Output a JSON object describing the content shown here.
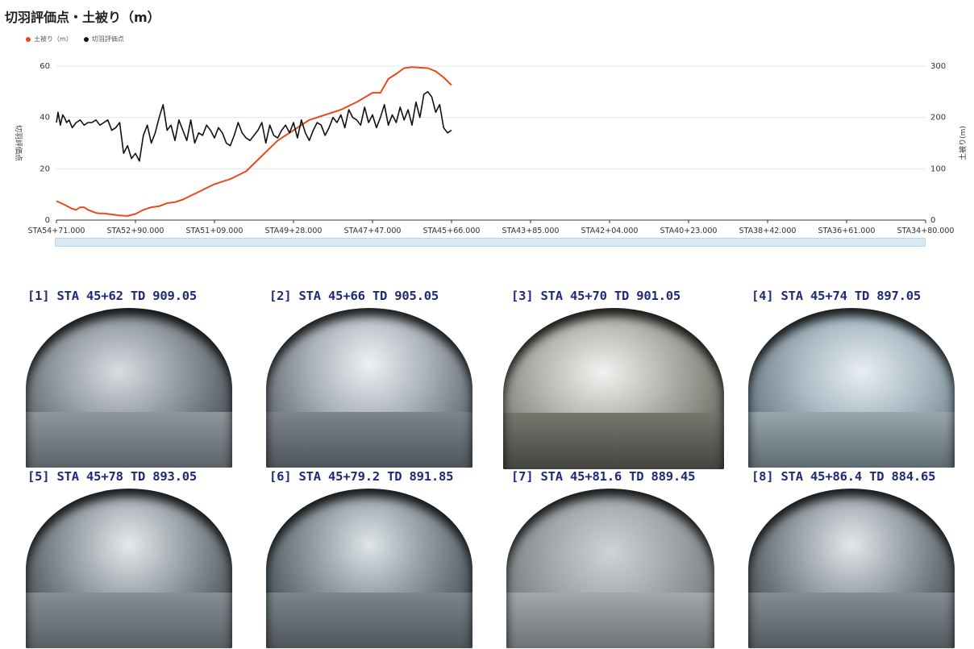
{
  "title": "切羽評価点・土被り（m）",
  "legend": [
    {
      "label": "土被り（m）",
      "color": "#e84a1a"
    },
    {
      "label": "切羽評価点",
      "color": "#111111"
    }
  ],
  "colors": {
    "cover": "#e84a1a",
    "score": "#111111",
    "axis": "#333333",
    "grid": "#e6e6e6",
    "label_text": "#1f2a7a"
  },
  "chart_data": {
    "type": "line",
    "title": "切羽評価点・土被り（m）",
    "categories": [
      "STA54+71.000",
      "STA52+90.000",
      "STA51+09.000",
      "STA49+28.000",
      "STA47+47.000",
      "STA45+66.000",
      "STA43+85.000",
      "STA42+04.000",
      "STA40+23.000",
      "STA38+42.000",
      "STA36+61.000",
      "STA34+80.000"
    ],
    "xlim": [
      0,
      11
    ],
    "y_left": {
      "label": "切羽評価点",
      "ylim": [
        0,
        60
      ],
      "ticks": [
        0,
        20,
        40,
        60
      ]
    },
    "y_right": {
      "label": "土被り(m)",
      "ylim": [
        0,
        300
      ],
      "ticks": [
        0,
        100,
        200,
        300
      ]
    },
    "grid": true,
    "legend_position": "top-left",
    "series": [
      {
        "name": "土被り（m）",
        "axis": "right",
        "color": "#e84a1a",
        "x": [
          0,
          0.1,
          0.2,
          0.25,
          0.3,
          0.35,
          0.4,
          0.5,
          0.55,
          0.6,
          0.7,
          0.8,
          0.9,
          1.0,
          1.1,
          1.2,
          1.3,
          1.4,
          1.5,
          1.6,
          1.8,
          2.0,
          2.2,
          2.4,
          2.6,
          2.8,
          3.0,
          3.2,
          3.4,
          3.6,
          3.8,
          4.0,
          4.1,
          4.2,
          4.3,
          4.4,
          4.5,
          4.6,
          4.7,
          4.8,
          4.9,
          5.0
        ],
        "values": [
          37,
          30,
          22,
          20,
          25,
          25,
          20,
          14,
          13,
          13,
          11,
          9,
          8,
          12,
          20,
          25,
          27,
          33,
          35,
          40,
          55,
          70,
          80,
          95,
          125,
          155,
          175,
          195,
          205,
          215,
          230,
          248,
          248,
          275,
          285,
          296,
          298,
          297,
          296,
          290,
          278,
          263
        ]
      },
      {
        "name": "切羽評価点",
        "axis": "left",
        "color": "#111111",
        "x": [
          0,
          0.02,
          0.05,
          0.08,
          0.1,
          0.13,
          0.16,
          0.2,
          0.25,
          0.3,
          0.35,
          0.4,
          0.45,
          0.5,
          0.55,
          0.6,
          0.65,
          0.7,
          0.75,
          0.8,
          0.85,
          0.9,
          0.95,
          1.0,
          1.05,
          1.1,
          1.15,
          1.2,
          1.25,
          1.3,
          1.35,
          1.4,
          1.45,
          1.5,
          1.55,
          1.6,
          1.65,
          1.7,
          1.75,
          1.8,
          1.85,
          1.9,
          1.95,
          2.0,
          2.05,
          2.1,
          2.15,
          2.2,
          2.25,
          2.3,
          2.35,
          2.4,
          2.45,
          2.5,
          2.55,
          2.6,
          2.65,
          2.7,
          2.75,
          2.8,
          2.85,
          2.9,
          2.95,
          3.0,
          3.05,
          3.1,
          3.15,
          3.2,
          3.25,
          3.3,
          3.35,
          3.4,
          3.45,
          3.5,
          3.55,
          3.6,
          3.65,
          3.7,
          3.75,
          3.8,
          3.85,
          3.9,
          3.95,
          4.0,
          4.05,
          4.1,
          4.15,
          4.2,
          4.25,
          4.3,
          4.35,
          4.4,
          4.45,
          4.5,
          4.55,
          4.6,
          4.65,
          4.7,
          4.75,
          4.8,
          4.85,
          4.9,
          4.95,
          5.0
        ],
        "values": [
          38,
          42,
          37,
          41,
          40,
          38,
          39,
          36,
          38,
          39,
          37,
          38,
          38,
          39,
          37,
          38,
          39,
          35,
          36,
          38,
          26,
          29,
          24,
          26,
          23,
          33,
          37,
          30,
          34,
          40,
          45,
          35,
          37,
          31,
          39,
          35,
          31,
          39,
          30,
          34,
          33,
          37,
          35,
          32,
          36,
          34,
          30,
          29,
          33,
          38,
          34,
          32,
          31,
          33,
          35,
          38,
          30,
          37,
          33,
          32,
          35,
          37,
          34,
          38,
          32,
          39,
          34,
          31,
          35,
          38,
          37,
          33,
          36,
          40,
          38,
          41,
          36,
          43,
          40,
          39,
          37,
          44,
          38,
          41,
          36,
          40,
          45,
          37,
          41,
          38,
          44,
          39,
          43,
          37,
          46,
          40,
          49,
          50,
          48,
          42,
          45,
          36,
          34,
          35
        ]
      }
    ]
  },
  "photos": [
    {
      "label": "[1] STA 45+62 TD 909.05"
    },
    {
      "label": "[2] STA 45+66 TD 905.05"
    },
    {
      "label": "[3] STA 45+70 TD 901.05"
    },
    {
      "label": "[4] STA 45+74 TD 897.05"
    },
    {
      "label": "[5] STA 45+78 TD 893.05"
    },
    {
      "label": "[6] STA 45+79.2 TD 891.85"
    },
    {
      "label": "[7] STA 45+81.6 TD 889.45"
    },
    {
      "label": "[8] STA 45+86.4 TD 884.65"
    }
  ]
}
